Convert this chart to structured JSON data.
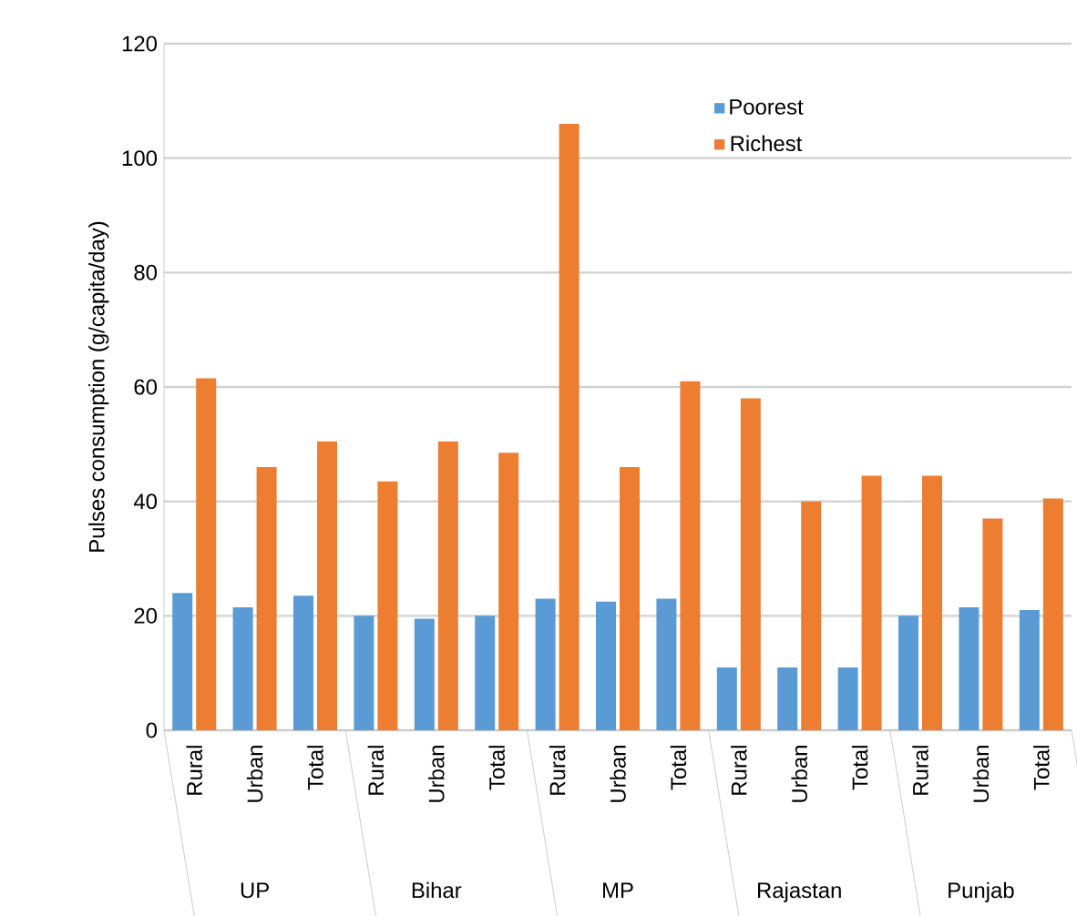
{
  "chart_data": {
    "type": "bar",
    "ylabel": "Pulses consumption (g/capita/day)",
    "categories": [
      "Rural",
      "Urban",
      "Total",
      "Rural",
      "Urban",
      "Total",
      "Rural",
      "Urban",
      "Total",
      "Rural",
      "Urban",
      "Total",
      "Rural",
      "Urban",
      "Total"
    ],
    "series": [
      {
        "name": "Poorest",
        "color": "#5b9bd5",
        "values": [
          24,
          21.5,
          23.5,
          20,
          19.5,
          20,
          23,
          22.5,
          23,
          11,
          11,
          11,
          20,
          21.5,
          21
        ]
      },
      {
        "name": "Richest",
        "color": "#ed7d31",
        "values": [
          61.5,
          46,
          50.5,
          43.5,
          50.5,
          48.5,
          106,
          46,
          61,
          58,
          40,
          44.5,
          44.5,
          37,
          40.5
        ]
      }
    ],
    "annotations": [
      "UP",
      "Bihar",
      "MP",
      "Rajastan",
      "Punjab"
    ],
    "ylim": [
      0,
      120
    ],
    "yticks": [
      0,
      20,
      40,
      60,
      80,
      100,
      120
    ],
    "grid": "y",
    "legend": "top right"
  }
}
